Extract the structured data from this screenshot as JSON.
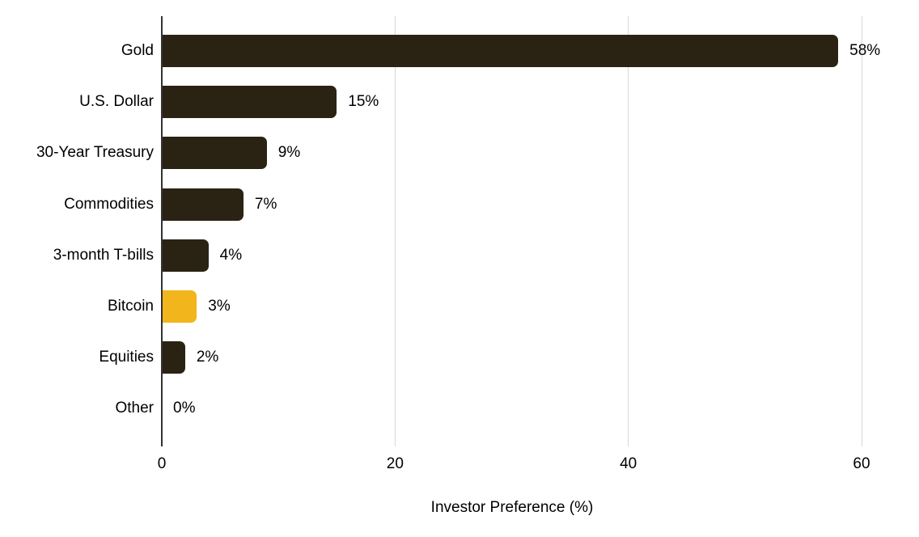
{
  "chart_data": {
    "type": "bar",
    "orientation": "horizontal",
    "title": "",
    "xlabel": "Investor Preference (%)",
    "categories": [
      "Gold",
      "U.S. Dollar",
      "30-Year Treasury",
      "Commodities",
      "3-month T-bills",
      "Bitcoin",
      "Equities",
      "Other"
    ],
    "values": [
      58,
      15,
      9,
      7,
      4,
      3,
      2,
      0
    ],
    "value_labels": [
      "58%",
      "15%",
      "9%",
      "7%",
      "4%",
      "3%",
      "2%",
      "0%"
    ],
    "xlim": [
      0,
      60
    ],
    "xticks": [
      0,
      20,
      40,
      60
    ],
    "grid": "vertical",
    "legend": "none",
    "colors": {
      "bar_default": "#2a2314",
      "bar_highlight": "#f2b51b",
      "highlight_category": "Bitcoin",
      "gridline": "#d9d9d9",
      "axis_line": "#333333",
      "text": "#000000",
      "background": "#ffffff"
    }
  }
}
